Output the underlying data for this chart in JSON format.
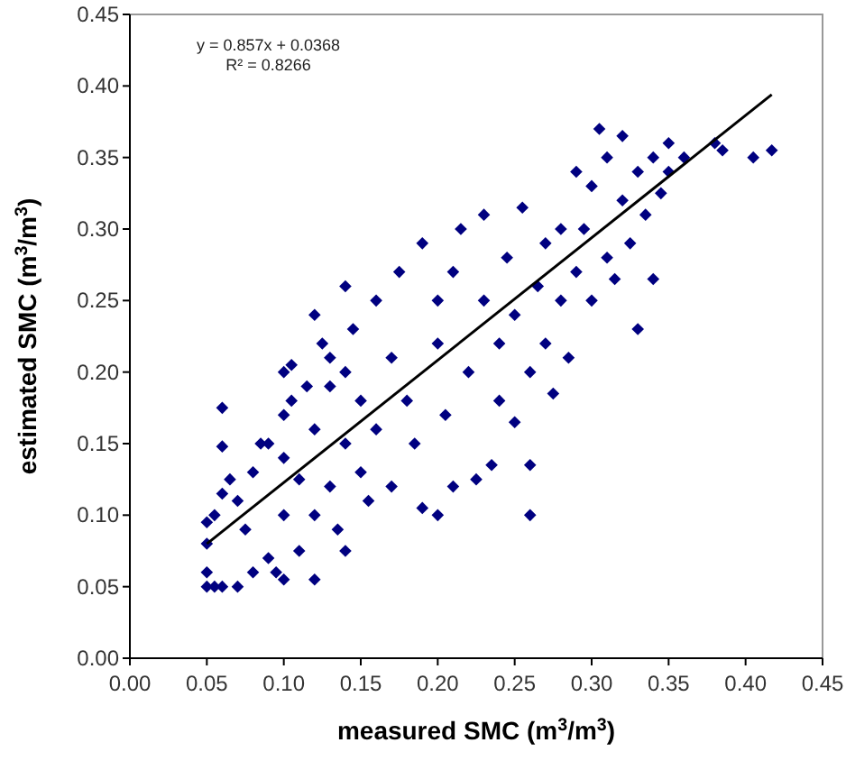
{
  "chart_data": {
    "type": "scatter",
    "xlabel": "measured SMC (m$^{3}$/m$^{3}$)",
    "ylabel": "estimated SMC (m$^{3}$/m$^{3}$)",
    "annotations": [
      "y = 0.857x + 0.0368",
      "R² = 0.8266"
    ],
    "xlim": [
      0,
      0.45
    ],
    "ylim": [
      0,
      0.45
    ],
    "xticks": [
      {
        "value": 0,
        "label": "0.00"
      },
      {
        "value": 0.05,
        "label": "0.05"
      },
      {
        "value": 0.1,
        "label": "0.10"
      },
      {
        "value": 0.15,
        "label": "0.15"
      },
      {
        "value": 0.2,
        "label": "0.20"
      },
      {
        "value": 0.25,
        "label": "0.25"
      },
      {
        "value": 0.3,
        "label": "0.30"
      },
      {
        "value": 0.35,
        "label": "0.35"
      },
      {
        "value": 0.4,
        "label": "0.40"
      },
      {
        "value": 0.45,
        "label": "0.45"
      }
    ],
    "yticks": [
      {
        "value": 0,
        "label": "0.00"
      },
      {
        "value": 0.05,
        "label": "0.05"
      },
      {
        "value": 0.1,
        "label": "0.10"
      },
      {
        "value": 0.15,
        "label": "0.15"
      },
      {
        "value": 0.2,
        "label": "0.20"
      },
      {
        "value": 0.25,
        "label": "0.25"
      },
      {
        "value": 0.3,
        "label": "0.30"
      },
      {
        "value": 0.35,
        "label": "0.35"
      },
      {
        "value": 0.4,
        "label": "0.40"
      },
      {
        "value": 0.45,
        "label": "0.45"
      }
    ],
    "grid": false,
    "series": [
      {
        "marker": "diamond",
        "color": "#000080",
        "x": [
          0.05,
          0.055,
          0.06,
          0.07,
          0.05,
          0.05,
          0.05,
          0.055,
          0.06,
          0.06,
          0.065,
          0.07,
          0.075,
          0.08,
          0.08,
          0.085,
          0.09,
          0.09,
          0.095,
          0.1,
          0.1,
          0.1,
          0.1,
          0.105,
          0.11,
          0.11,
          0.115,
          0.12,
          0.12,
          0.12,
          0.125,
          0.13,
          0.13,
          0.135,
          0.14,
          0.14,
          0.14,
          0.145,
          0.15,
          0.15,
          0.155,
          0.16,
          0.16,
          0.17,
          0.17,
          0.175,
          0.18,
          0.185,
          0.19,
          0.19,
          0.2,
          0.2,
          0.2,
          0.205,
          0.21,
          0.21,
          0.215,
          0.22,
          0.225,
          0.23,
          0.23,
          0.235,
          0.24,
          0.24,
          0.245,
          0.25,
          0.25,
          0.255,
          0.26,
          0.26,
          0.26,
          0.265,
          0.27,
          0.27,
          0.275,
          0.28,
          0.28,
          0.285,
          0.29,
          0.29,
          0.295,
          0.3,
          0.3,
          0.305,
          0.31,
          0.31,
          0.315,
          0.32,
          0.32,
          0.325,
          0.33,
          0.33,
          0.335,
          0.34,
          0.34,
          0.345,
          0.35,
          0.35,
          0.36,
          0.38,
          0.385,
          0.405,
          0.417,
          0.12,
          0.14,
          0.06,
          0.105,
          0.13,
          0.1
        ],
        "values": [
          0.05,
          0.05,
          0.05,
          0.05,
          0.06,
          0.08,
          0.095,
          0.1,
          0.115,
          0.148,
          0.125,
          0.11,
          0.09,
          0.06,
          0.13,
          0.15,
          0.07,
          0.15,
          0.06,
          0.055,
          0.1,
          0.14,
          0.17,
          0.205,
          0.075,
          0.125,
          0.19,
          0.055,
          0.1,
          0.16,
          0.22,
          0.12,
          0.19,
          0.09,
          0.075,
          0.15,
          0.2,
          0.23,
          0.18,
          0.13,
          0.11,
          0.25,
          0.16,
          0.21,
          0.12,
          0.27,
          0.18,
          0.15,
          0.105,
          0.29,
          0.22,
          0.25,
          0.1,
          0.17,
          0.12,
          0.27,
          0.3,
          0.2,
          0.125,
          0.25,
          0.31,
          0.135,
          0.22,
          0.18,
          0.28,
          0.165,
          0.24,
          0.315,
          0.1,
          0.135,
          0.2,
          0.26,
          0.29,
          0.22,
          0.185,
          0.25,
          0.3,
          0.21,
          0.27,
          0.34,
          0.3,
          0.25,
          0.33,
          0.37,
          0.35,
          0.28,
          0.265,
          0.32,
          0.365,
          0.29,
          0.34,
          0.23,
          0.31,
          0.35,
          0.265,
          0.325,
          0.36,
          0.34,
          0.35,
          0.36,
          0.355,
          0.35,
          0.355,
          0.24,
          0.26,
          0.175,
          0.18,
          0.21,
          0.2
        ]
      },
      {
        "type": "line",
        "color": "#000000",
        "x": [
          0.05,
          0.417
        ],
        "values": [
          0.08,
          0.394
        ]
      }
    ]
  }
}
